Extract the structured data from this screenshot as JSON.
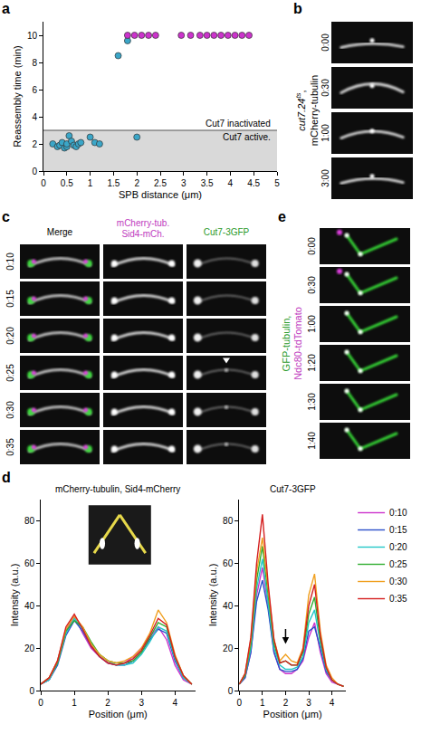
{
  "panel_labels": [
    "a",
    "b",
    "c",
    "d",
    "e"
  ],
  "chart_data": [
    {
      "type": "scatter",
      "x_label": "SPB distance (μm)",
      "y_label": "Reassembly time (min)",
      "xlim": [
        0,
        5
      ],
      "xticks": [
        0,
        0.5,
        1,
        1.5,
        2,
        2.5,
        3,
        3.5,
        4,
        4.5,
        5
      ],
      "ylim": [
        0,
        11
      ],
      "yticks": [
        0,
        2,
        4,
        6,
        8,
        10
      ],
      "grid": false,
      "threshold": 3,
      "annotations": [
        "Cut7 inactivated",
        "Cut7 active."
      ],
      "series": [
        {
          "color": "#3aa6c8",
          "marker": "circle",
          "x": [
            0.2,
            0.3,
            0.35,
            0.4,
            0.45,
            0.5,
            0.5,
            0.55,
            0.6,
            0.65,
            0.7,
            0.75,
            0.8,
            1.0,
            1.1,
            1.2,
            1.6,
            1.8,
            2.0
          ],
          "values": [
            2.0,
            1.8,
            1.9,
            2.1,
            1.7,
            1.8,
            2.0,
            2.6,
            2.2,
            1.9,
            1.8,
            2.0,
            2.1,
            2.5,
            2.1,
            2.0,
            8.5,
            9.6,
            2.5
          ]
        },
        {
          "color": "#cc33cc",
          "marker": "circle",
          "x": [
            1.8,
            1.95,
            2.1,
            2.25,
            2.4,
            2.95,
            3.15,
            3.35,
            3.5,
            3.65,
            3.8,
            3.95,
            4.1,
            4.25,
            4.4
          ],
          "values": [
            10,
            10,
            10,
            10,
            10,
            10,
            10,
            10,
            10,
            10,
            10,
            10,
            10,
            10,
            10
          ]
        }
      ]
    },
    {
      "type": "line",
      "title": "mCherry-tubulin, Sid4-mCherry",
      "x_label": "Position (μm)",
      "y_label": "Intensity (a.u.)",
      "x": [
        0,
        0.25,
        0.5,
        0.75,
        1,
        1.25,
        1.5,
        1.75,
        2,
        2.25,
        2.5,
        2.75,
        3,
        3.25,
        3.5,
        3.75,
        4,
        4.25,
        4.5
      ],
      "xlim": [
        0,
        4.6
      ],
      "xticks": [
        0,
        1,
        2,
        3,
        4
      ],
      "ylim": [
        0,
        90
      ],
      "yticks": [
        0,
        20,
        40,
        60,
        80
      ],
      "grid": false,
      "series": [
        {
          "color": "#cc33cc",
          "values": [
            3,
            5,
            14,
            28,
            35,
            27,
            20,
            16,
            13,
            12,
            13,
            16,
            20,
            25,
            30,
            24,
            12,
            5,
            3
          ]
        },
        {
          "color": "#2b4fc9",
          "values": [
            3,
            5,
            12,
            26,
            33,
            28,
            21,
            16,
            13,
            12,
            12,
            14,
            18,
            24,
            29,
            27,
            14,
            6,
            3
          ]
        },
        {
          "color": "#22c7c7",
          "values": [
            3,
            5,
            13,
            27,
            34,
            29,
            22,
            17,
            14,
            12,
            12,
            13,
            17,
            23,
            30,
            28,
            15,
            6,
            3
          ]
        },
        {
          "color": "#2fae2f",
          "values": [
            3,
            6,
            13,
            28,
            33,
            30,
            23,
            17,
            14,
            13,
            13,
            14,
            18,
            25,
            32,
            30,
            16,
            7,
            3
          ]
        },
        {
          "color": "#f0a020",
          "values": [
            3,
            6,
            14,
            29,
            35,
            30,
            22,
            17,
            14,
            13,
            14,
            16,
            20,
            27,
            38,
            32,
            17,
            7,
            3
          ]
        },
        {
          "color": "#d42020",
          "values": [
            3,
            6,
            14,
            30,
            36,
            29,
            21,
            16,
            13,
            12,
            13,
            15,
            19,
            26,
            34,
            31,
            16,
            7,
            3
          ]
        }
      ]
    },
    {
      "type": "line",
      "title": "Cut7-3GFP",
      "x_label": "Position (μm)",
      "y_label": "Intensity (a.u.)",
      "x": [
        0,
        0.25,
        0.5,
        0.75,
        1,
        1.25,
        1.5,
        1.75,
        2,
        2.25,
        2.5,
        2.75,
        3,
        3.25,
        3.5,
        3.75,
        4,
        4.25,
        4.5
      ],
      "xlim": [
        0,
        4.6
      ],
      "xticks": [
        0,
        1,
        2,
        3,
        4
      ],
      "ylim": [
        0,
        90
      ],
      "yticks": [
        0,
        20,
        40,
        60,
        80
      ],
      "grid": false,
      "legend": "right",
      "series": [
        {
          "name": "0:10",
          "color": "#cc33cc",
          "values": [
            3,
            6,
            18,
            45,
            58,
            40,
            18,
            10,
            8,
            8,
            10,
            14,
            25,
            32,
            18,
            8,
            4,
            3,
            2
          ]
        },
        {
          "name": "0:15",
          "color": "#2b4fc9",
          "values": [
            3,
            6,
            18,
            42,
            52,
            38,
            18,
            10,
            9,
            9,
            10,
            15,
            28,
            30,
            20,
            9,
            5,
            3,
            2
          ]
        },
        {
          "name": "0:20",
          "color": "#22c7c7",
          "values": [
            3,
            7,
            20,
            48,
            62,
            42,
            20,
            12,
            10,
            10,
            11,
            16,
            32,
            38,
            22,
            10,
            5,
            3,
            2
          ]
        },
        {
          "name": "0:25",
          "color": "#2fae2f",
          "values": [
            3,
            7,
            22,
            52,
            68,
            45,
            22,
            13,
            14,
            12,
            12,
            18,
            36,
            44,
            24,
            11,
            5,
            3,
            2
          ]
        },
        {
          "name": "0:30",
          "color": "#f0a020",
          "values": [
            3,
            8,
            24,
            56,
            72,
            48,
            24,
            14,
            17,
            14,
            13,
            20,
            45,
            55,
            28,
            12,
            6,
            3,
            2
          ]
        },
        {
          "name": "0:35",
          "color": "#d42020",
          "values": [
            3,
            8,
            25,
            60,
            83,
            50,
            24,
            13,
            14,
            12,
            12,
            19,
            40,
            50,
            26,
            11,
            5,
            3,
            2
          ]
        }
      ]
    }
  ],
  "panels": {
    "b": {
      "strain": "cut7.24",
      "superscript": "ts",
      "separator": ",",
      "label": "mCherry-tubulin",
      "times": [
        "0:00",
        "0:30",
        "1:00",
        "3:00"
      ]
    },
    "c": {
      "headers": [
        {
          "text": "Merge",
          "color": "#000000"
        },
        {
          "text": "mCherry-tub. Sid4-mCh.",
          "color": "#c03cc0"
        },
        {
          "text": "Cut7-3GFP",
          "color": "#2a9a2a"
        }
      ],
      "times": [
        "0:10",
        "0:15",
        "0:20",
        "0:25",
        "0:30",
        "0:35"
      ]
    },
    "e": {
      "labels": [
        {
          "text": "GFP-tubulin,",
          "color": "#2a9a2a"
        },
        {
          "text": "Ndc80-tdTomato",
          "color": "#c03cc0"
        }
      ],
      "times": [
        "0:00",
        "0:30",
        "1:00",
        "1:20",
        "1:30",
        "1:40"
      ]
    }
  }
}
